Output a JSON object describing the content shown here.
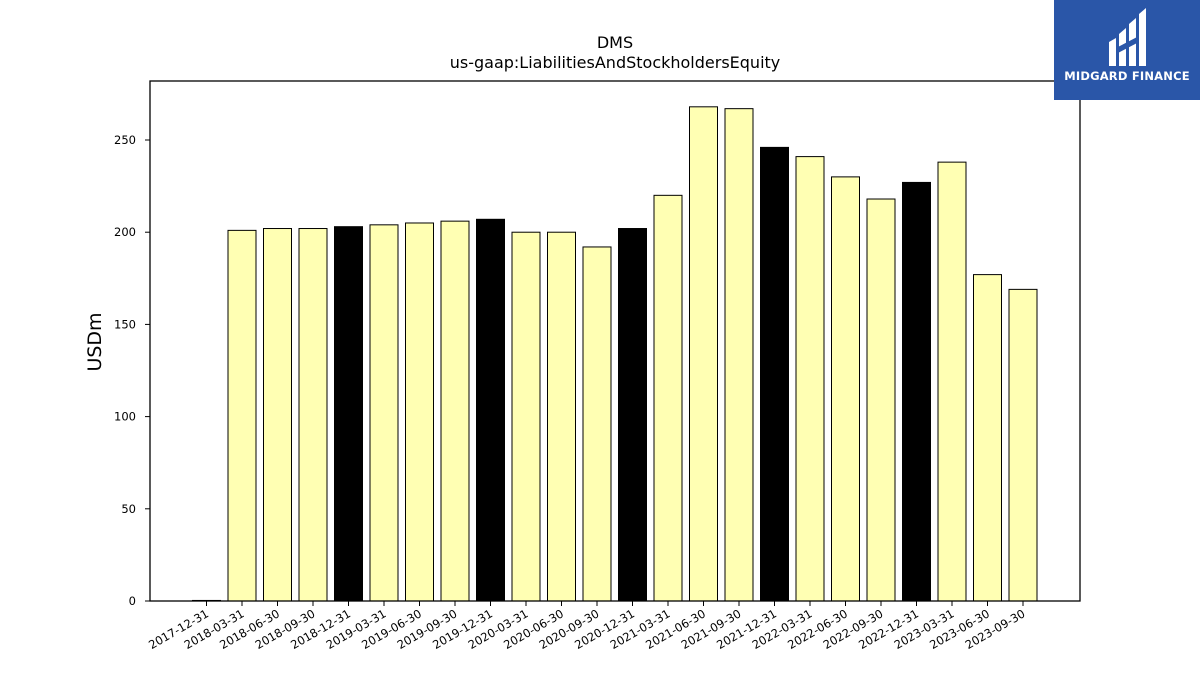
{
  "chart_data": {
    "type": "bar",
    "title": "DMS",
    "subtitle": "us-gaap:LiabilitiesAndStockholdersEquity",
    "xlabel": "",
    "ylabel": "USDm",
    "ylim": [
      0,
      282
    ],
    "yticks": [
      0,
      50,
      100,
      150,
      200,
      250
    ],
    "grid": false,
    "categories": [
      "2017-12-31",
      "2018-03-31",
      "2018-06-30",
      "2018-09-30",
      "2018-12-31",
      "2019-03-31",
      "2019-06-30",
      "2019-09-30",
      "2019-12-31",
      "2020-03-31",
      "2020-06-30",
      "2020-09-30",
      "2020-12-31",
      "2021-03-31",
      "2021-06-30",
      "2021-09-30",
      "2021-12-31",
      "2022-03-31",
      "2022-06-30",
      "2022-09-30",
      "2022-12-31",
      "2023-03-31",
      "2023-06-30",
      "2023-09-30"
    ],
    "values": [
      0.3,
      201,
      202,
      202,
      203,
      204,
      205,
      206,
      207,
      200,
      200,
      192,
      202,
      220,
      268,
      267,
      246,
      241,
      230,
      218,
      227,
      238,
      177,
      169
    ],
    "colors": {
      "quarter": "#ffffb3",
      "year_end": "#000000",
      "edge": "#000000"
    },
    "bar_color_keys": [
      "year_end",
      "quarter",
      "quarter",
      "quarter",
      "year_end",
      "quarter",
      "quarter",
      "quarter",
      "year_end",
      "quarter",
      "quarter",
      "quarter",
      "year_end",
      "quarter",
      "quarter",
      "quarter",
      "year_end",
      "quarter",
      "quarter",
      "quarter",
      "year_end",
      "quarter",
      "quarter",
      "quarter"
    ]
  },
  "logo": {
    "text": "MIDGARD FINANCE",
    "icon": "midgard-logo-icon",
    "background": "#2a56a8"
  }
}
